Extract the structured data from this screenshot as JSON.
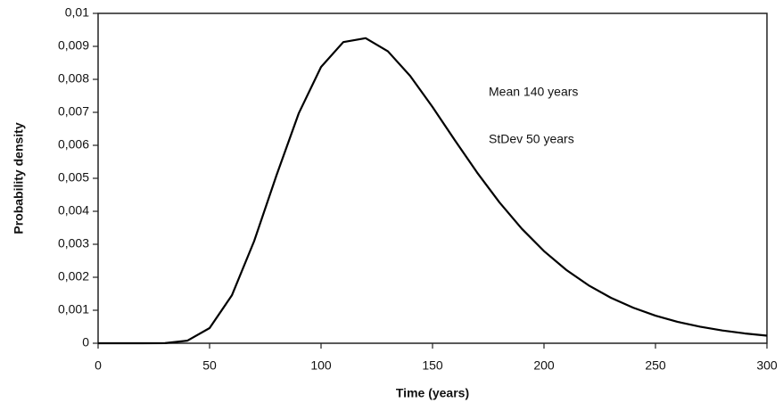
{
  "chart_data": {
    "type": "line",
    "xlabel": "Time (years)",
    "ylabel": "Probability density",
    "annotations": [
      "Mean 140 years",
      "StDev 50 years"
    ],
    "x": [
      0,
      10,
      20,
      30,
      40,
      50,
      60,
      70,
      80,
      90,
      100,
      110,
      120,
      130,
      140,
      150,
      160,
      170,
      180,
      190,
      200,
      210,
      220,
      230,
      240,
      250,
      260,
      270,
      280,
      290,
      300
    ],
    "series": [
      {
        "color": "#000000",
        "values": [
          0,
          0,
          0,
          4e-06,
          7.7e-05,
          0.000459,
          0.001452,
          0.003098,
          0.005089,
          0.006971,
          0.008376,
          0.00913,
          0.009248,
          0.00885,
          0.008101,
          0.007161,
          0.006156,
          0.005175,
          0.004271,
          0.003475,
          0.002793,
          0.002223,
          0.001756,
          0.001378,
          0.001077,
          0.000837,
          0.000648,
          0.000501,
          0.000387,
          0.000298,
          0.000229
        ]
      }
    ],
    "xlim": [
      0,
      300
    ],
    "xticks": [
      0,
      50,
      100,
      150,
      200,
      250,
      300
    ],
    "ylim": [
      0,
      0.01
    ],
    "yticks": [
      0,
      {
        "value": 0.001,
        "label": "0,001"
      },
      {
        "value": 0.002,
        "label": "0,002"
      },
      {
        "value": 0.003,
        "label": "0,003"
      },
      {
        "value": 0.004,
        "label": "0,004"
      },
      {
        "value": 0.005,
        "label": "0,005"
      },
      {
        "value": 0.006,
        "label": "0,006"
      },
      {
        "value": 0.007,
        "label": "0,007"
      },
      {
        "value": 0.008,
        "label": "0,008"
      },
      {
        "value": 0.009,
        "label": "0,009"
      },
      {
        "value": 0.01,
        "label": "0,01"
      }
    ],
    "grid": false
  }
}
